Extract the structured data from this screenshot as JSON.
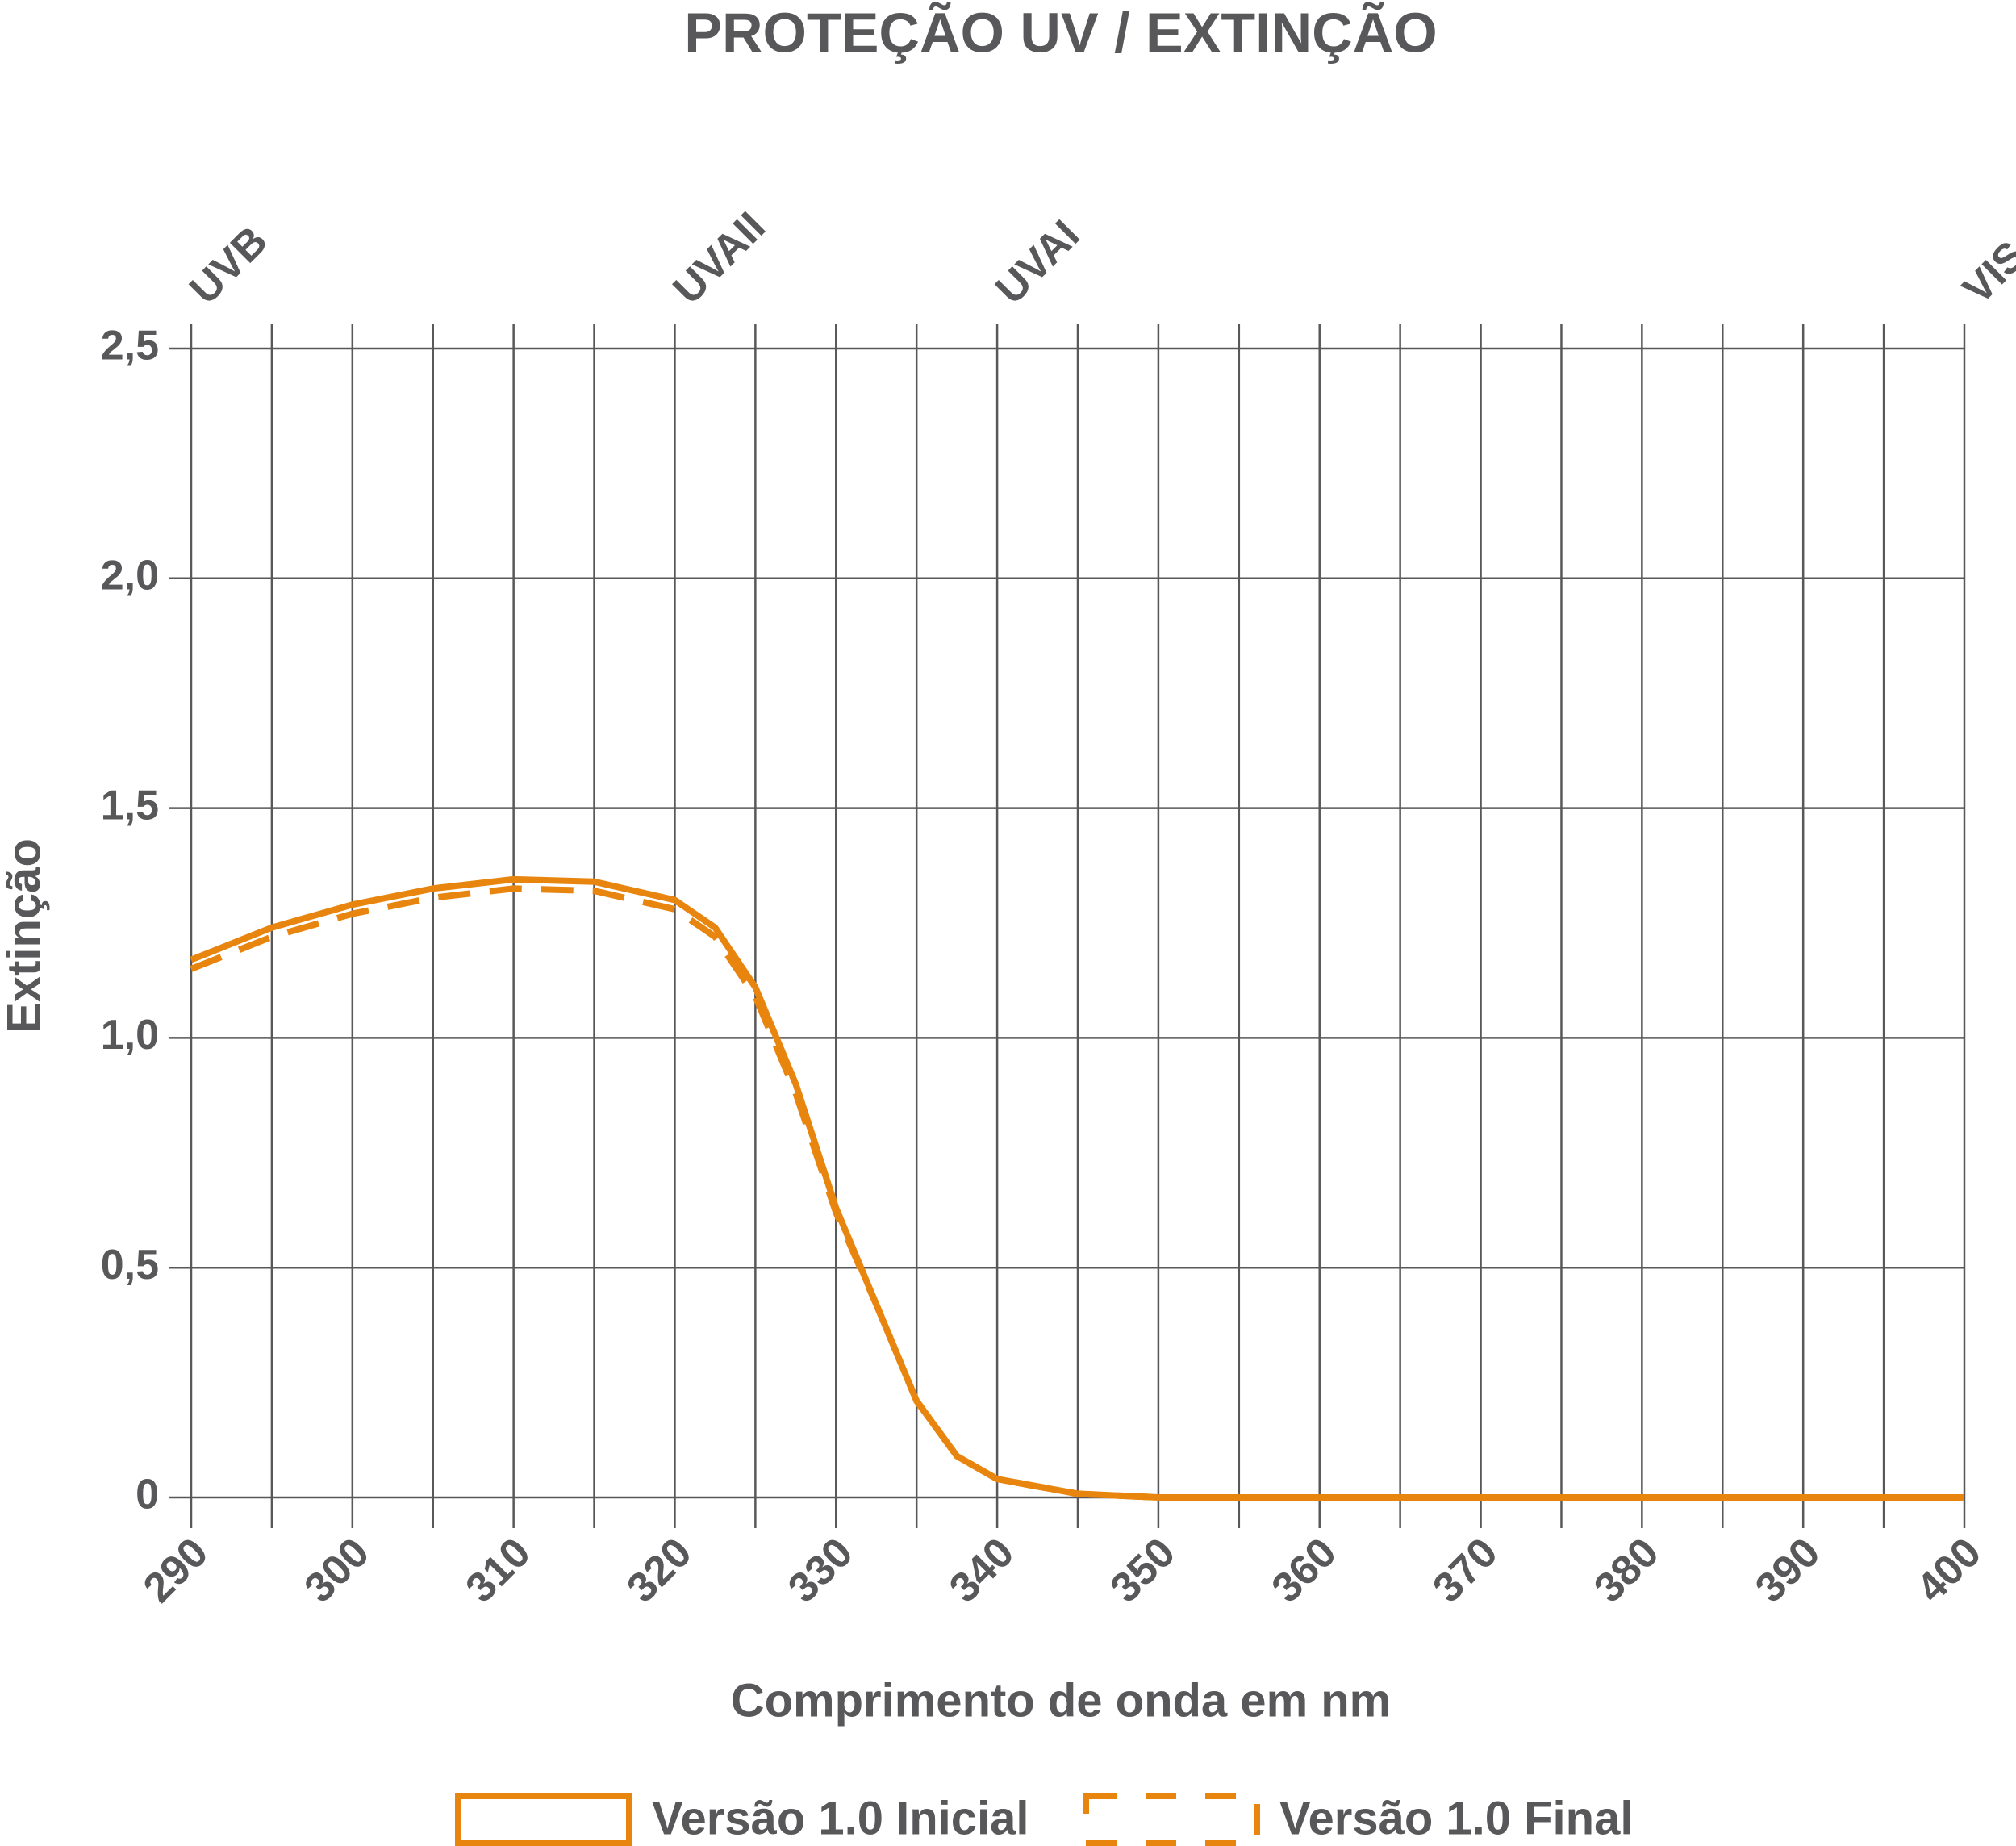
{
  "chart_data": {
    "type": "line",
    "title": "PROTEÇÃO UV / EXTINÇÃO",
    "xlabel": "Comprimento de onda em nm",
    "ylabel": "Extinção",
    "x": [
      290,
      295,
      300,
      305,
      310,
      315,
      320,
      322.5,
      325,
      327.5,
      330,
      332.5,
      335,
      337.5,
      340,
      345,
      350,
      360,
      370,
      380,
      390,
      400
    ],
    "series": [
      {
        "name": "Versão 1.0 Inicial",
        "color": "#e8850f",
        "style": "solid",
        "values": [
          1.17,
          1.24,
          1.29,
          1.325,
          1.345,
          1.34,
          1.3,
          1.24,
          1.11,
          0.9,
          0.63,
          0.42,
          0.21,
          0.09,
          0.04,
          0.008,
          0,
          0,
          0,
          0,
          0,
          0
        ]
      },
      {
        "name": "Versão 1.0 Final",
        "color": "#e8850f",
        "style": "dashed",
        "values": [
          1.15,
          1.22,
          1.27,
          1.305,
          1.325,
          1.32,
          1.28,
          1.22,
          1.09,
          0.88,
          0.62,
          0.42,
          0.21,
          0.09,
          0.04,
          0.008,
          0,
          0,
          0,
          0,
          0,
          0
        ]
      }
    ],
    "regions": [
      {
        "label": "UVB",
        "x": 290
      },
      {
        "label": "UVAII",
        "x": 320
      },
      {
        "label": "UVAI",
        "x": 340
      },
      {
        "label": "VIS",
        "x": 400
      }
    ],
    "xlim": [
      290,
      400
    ],
    "xticks": [
      290,
      300,
      310,
      320,
      330,
      340,
      350,
      360,
      370,
      380,
      390,
      400
    ],
    "xminorticks": [
      295,
      305,
      315,
      325,
      335,
      345,
      355,
      365,
      375,
      385,
      395
    ],
    "ylim": [
      0,
      2.5
    ],
    "yticks": [
      0,
      {
        "value": 0.5,
        "label": "0,5"
      },
      {
        "value": 1,
        "label": "1,0"
      },
      {
        "value": 1.5,
        "label": "1,5"
      },
      {
        "value": 2,
        "label": "2,0"
      },
      {
        "value": 2.5,
        "label": "2,5"
      }
    ],
    "grid": true,
    "legend": "bottom"
  }
}
